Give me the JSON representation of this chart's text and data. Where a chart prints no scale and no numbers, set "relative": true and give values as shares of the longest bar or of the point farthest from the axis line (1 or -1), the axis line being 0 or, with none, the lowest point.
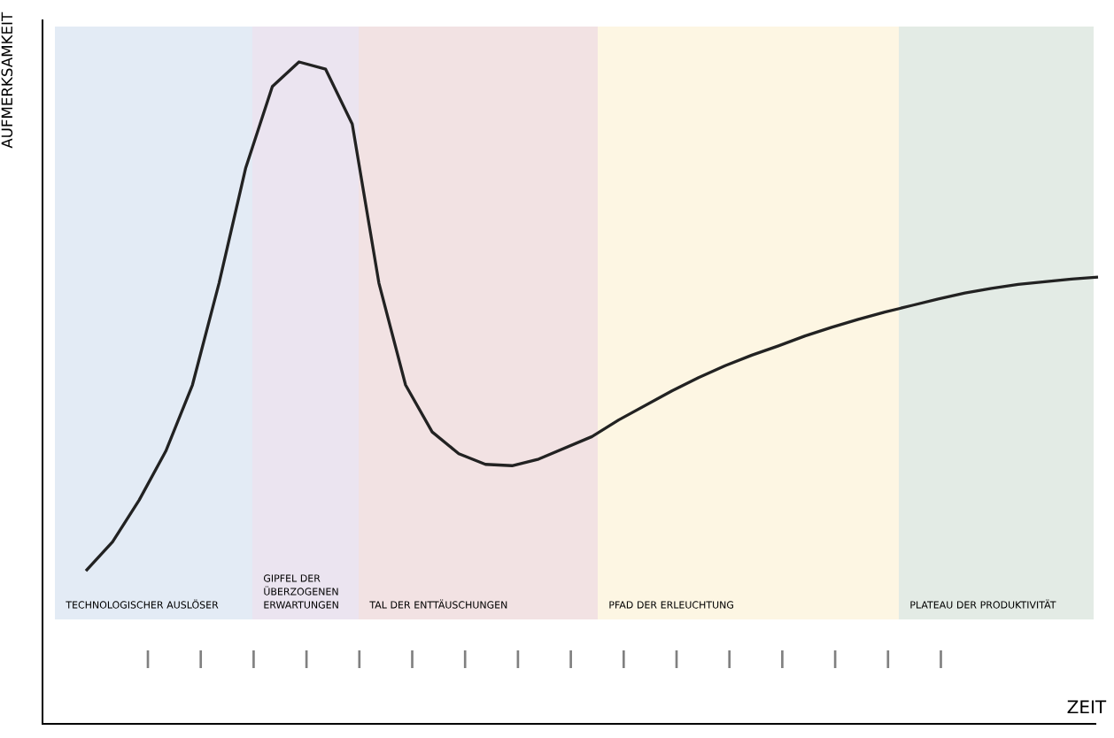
{
  "chart_data": {
    "type": "line",
    "relative": true,
    "xlabel": "ZEIT",
    "ylabel": "AUFMERKSAMKEIT",
    "categories": [
      null,
      null,
      null,
      null,
      null,
      null,
      null,
      null,
      null,
      null,
      null,
      null,
      null,
      null,
      null,
      null,
      null,
      null,
      null,
      null,
      null,
      null,
      null,
      null,
      null,
      null,
      null,
      null,
      null,
      null,
      null,
      null,
      null,
      null,
      null,
      null,
      null,
      null,
      null
    ],
    "series": [
      {
        "color": "#222222",
        "values": [
          0.231,
          0.275,
          0.338,
          0.412,
          0.512,
          0.666,
          0.84,
          0.963,
          1.0,
          0.989,
          0.906,
          0.666,
          0.512,
          0.441,
          0.408,
          0.392,
          0.39,
          0.4,
          0.417,
          0.434,
          0.459,
          0.481,
          0.503,
          0.523,
          0.541,
          0.557,
          0.571,
          0.586,
          0.599,
          0.611,
          0.622,
          0.632,
          0.642,
          0.651,
          0.658,
          0.664,
          0.668,
          0.672,
          0.675
        ]
      }
    ],
    "annotations": [
      "TECHNOLOGISCHER AUSLÖSER",
      "GIPFEL DER ÜBERZOGENEN ERWARTUNGEN",
      "TAL DER ENTTÄUSCHUNGEN",
      "PFAD DER ERLEUCHTUNG",
      "PLATEAU DER PRODUKTIVITÄT"
    ]
  }
}
